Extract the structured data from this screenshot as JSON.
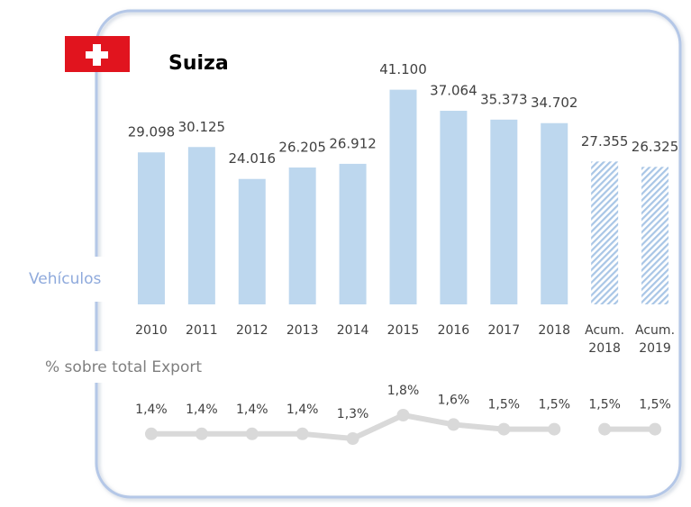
{
  "chart_data": [
    {
      "type": "bar",
      "title": "Suiza",
      "ylabel": "Vehículos",
      "categories": [
        "2010",
        "2011",
        "2012",
        "2013",
        "2014",
        "2015",
        "2016",
        "2017",
        "2018",
        "Acum. 2018",
        "Acum. 2019"
      ],
      "values": [
        29098,
        30125,
        24016,
        26205,
        26912,
        41100,
        37064,
        35373,
        34702,
        27355,
        26325
      ],
      "value_labels": [
        "29.098",
        "30.125",
        "24.016",
        "26.205",
        "26.912",
        "41.100",
        "37.064",
        "35.373",
        "34.702",
        "27.355",
        "26.325"
      ],
      "patterns": [
        "solid",
        "solid",
        "solid",
        "solid",
        "solid",
        "solid",
        "solid",
        "solid",
        "solid",
        "hatched",
        "hatched"
      ],
      "color": "#bdd7ee",
      "ylim": [
        0,
        45000
      ]
    },
    {
      "type": "line",
      "title": "% sobre total Export",
      "ylim": [
        1,
        2
      ],
      "series": [
        {
          "color": "#d9d9d9",
          "values": [
            1.4,
            1.4,
            1.4,
            1.4,
            1.3,
            1.8,
            1.6,
            1.5,
            1.5,
            null,
            null
          ],
          "value_labels": [
            "1,4%",
            "1,4%",
            "1,4%",
            "1,4%",
            "1,3%",
            "1,8%",
            "1,6%",
            "1,5%",
            "1,5%",
            null,
            null
          ]
        },
        {
          "color": "#d9d9d9",
          "values": [
            null,
            null,
            null,
            null,
            null,
            null,
            null,
            null,
            null,
            1.5,
            1.5
          ],
          "value_labels": [
            null,
            null,
            null,
            null,
            null,
            null,
            null,
            null,
            null,
            "1,5%",
            "1,5%"
          ]
        }
      ]
    }
  ]
}
